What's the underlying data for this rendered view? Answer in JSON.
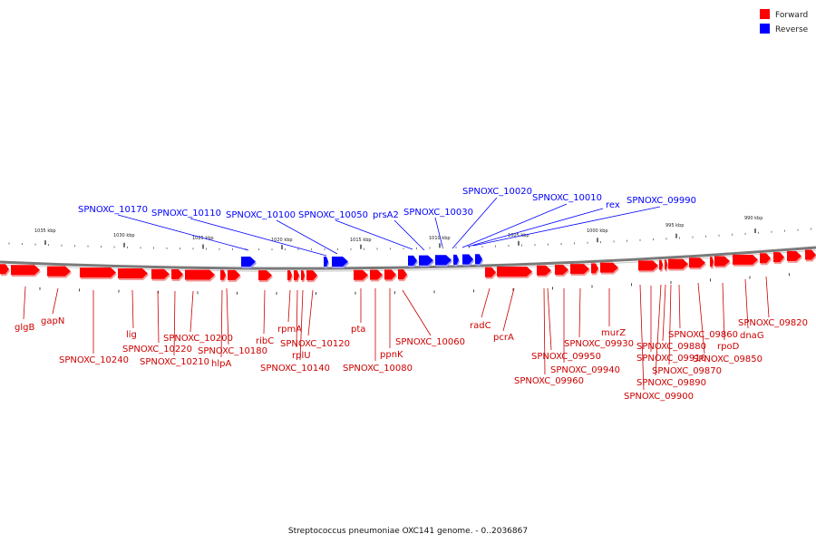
{
  "legend": [
    {
      "label": "Forward",
      "color": "#ff0000"
    },
    {
      "label": "Reverse",
      "color": "#0000ff"
    }
  ],
  "caption": "Streptococcus pneumoniae OXC141 genome. - 0..2036867",
  "colors": {
    "forward": "#ff0000",
    "reverse": "#0000ff",
    "backbone": "#888888"
  },
  "scale_labels": [
    "1035 kbp",
    "1030 kbp",
    "1025 kbp",
    "1020 kbp",
    "1015 kbp",
    "1010 kbp",
    "1005 kbp",
    "1000 kbp",
    "995 kbp",
    "990 kbp"
  ],
  "reverse_labels": [
    "SPNOXC_10170",
    "SPNOXC_10110",
    "SPNOXC_10100",
    "SPNOXC_10050",
    "prsA2",
    "SPNOXC_10030",
    "SPNOXC_10020",
    "SPNOXC_10010",
    "rex",
    "SPNOXC_09990"
  ],
  "forward_labels": [
    "glgB",
    "gapN",
    "SPNOXC_10240",
    "lig",
    "SPNOXC_10220",
    "SPNOXC_10210",
    "SPNOXC_10200",
    "SPNOXC_10180",
    "hlpA",
    "ribC",
    "rpmA",
    "rplU",
    "SPNOXC_10120",
    "SPNOXC_10140",
    "pta",
    "SPNOXC_10080",
    "ppnK",
    "SPNOXC_10060",
    "radC",
    "pcrA",
    "SPNOXC_09960",
    "SPNOXC_09950",
    "SPNOXC_09940",
    "SPNOXC_09930",
    "murZ",
    "SPNOXC_09910",
    "SPNOXC_09900",
    "SPNOXC_09890",
    "SPNOXC_09880",
    "SPNOXC_09870",
    "SPNOXC_09860",
    "SPNOXC_09850",
    "rpoD",
    "dnaG",
    "SPNOXC_09820"
  ]
}
